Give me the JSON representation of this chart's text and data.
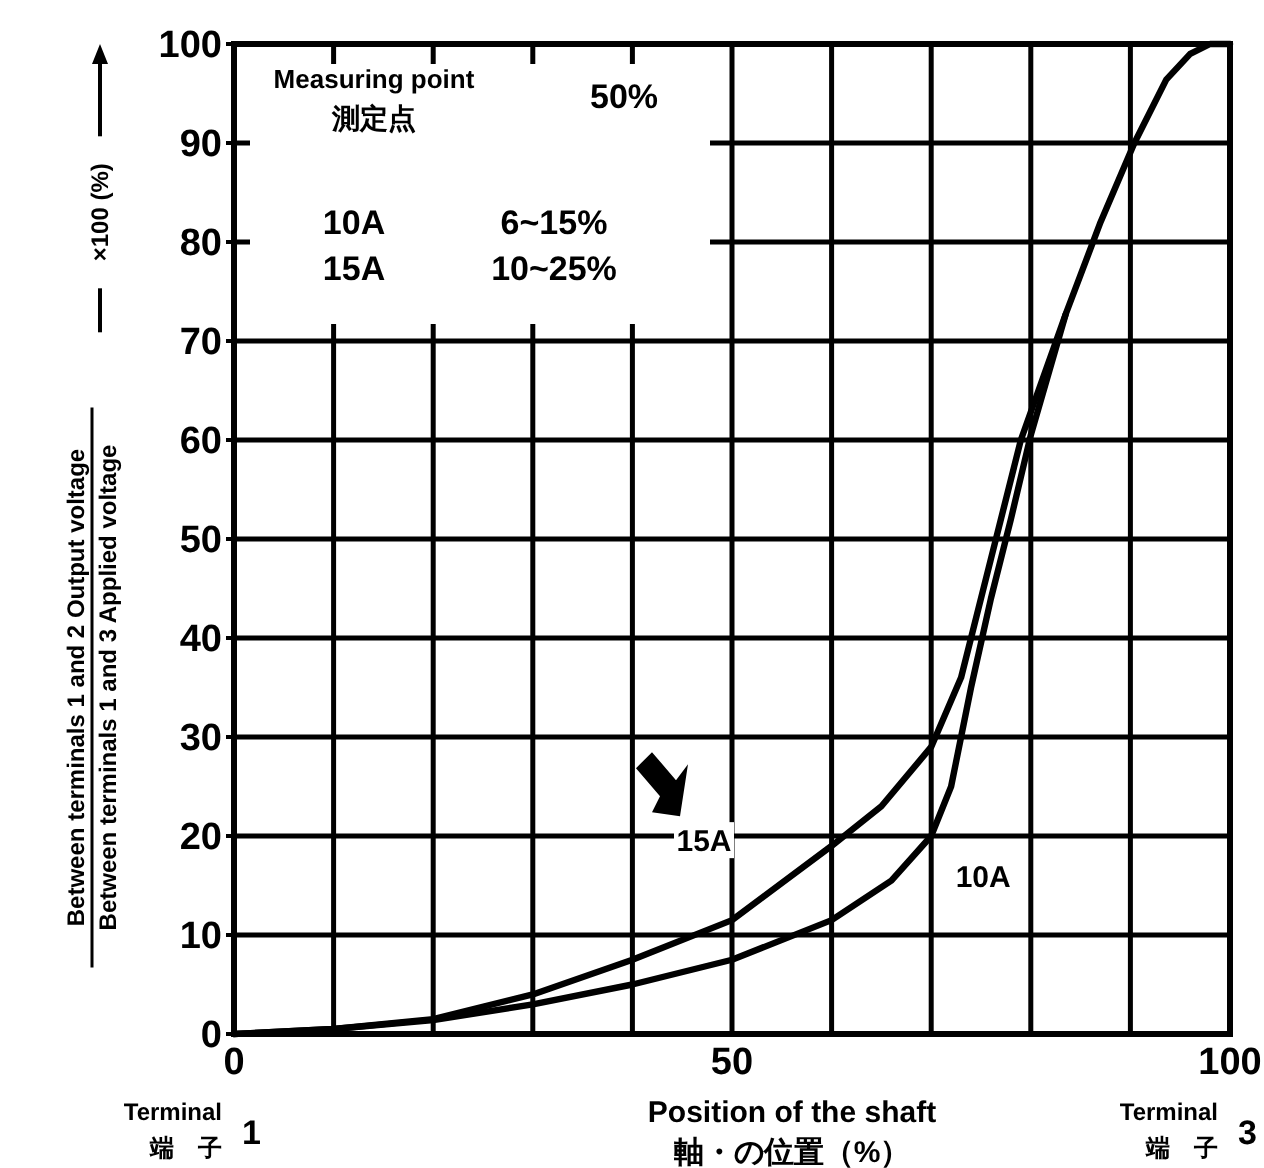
{
  "chart_data": {
    "type": "line",
    "xlabel": "Position of the shaft\n軸・の位置（%）",
    "ylabel": "Between terminals 1 and 2 Output voltage\nBetween terminals 1 and 3 Applied voltage\n×100 (%)",
    "xlim": [
      0,
      100
    ],
    "ylim": [
      0,
      100
    ],
    "xticks": [
      0,
      {
        "value": 10,
        "label": null
      },
      {
        "value": 20,
        "label": null
      },
      {
        "value": 30,
        "label": null
      },
      {
        "value": 40,
        "label": null
      },
      50,
      {
        "value": 60,
        "label": null
      },
      {
        "value": 70,
        "label": null
      },
      {
        "value": 80,
        "label": null
      },
      {
        "value": 90,
        "label": null
      },
      100
    ],
    "yticks": [
      0,
      10,
      20,
      30,
      40,
      50,
      60,
      70,
      80,
      90,
      100
    ],
    "grid": true,
    "series": [
      {
        "name": "15A",
        "color": "#000000",
        "x": [
          0,
          10,
          20,
          30,
          40,
          50,
          60,
          65,
          70,
          73,
          76,
          79,
          83.5,
          87,
          90.4,
          93.6,
          96,
          98,
          100
        ],
        "values": [
          0,
          0.5,
          1.5,
          4,
          7.5,
          11.5,
          19,
          23,
          29,
          36,
          48,
          60,
          72.7,
          82,
          90,
          96.4,
          99,
          100,
          100
        ]
      },
      {
        "name": "10A",
        "color": "#000000",
        "x": [
          0,
          10,
          20,
          30,
          40,
          50,
          60,
          66,
          70,
          72,
          74,
          76,
          78,
          80,
          83.5
        ],
        "values": [
          0,
          0.5,
          1.4,
          3,
          5,
          7.5,
          11.5,
          15.5,
          20,
          25,
          35,
          44,
          52,
          60.5,
          72.7
        ]
      }
    ],
    "annotations": [
      "Measuring point\n測定点",
      "50%",
      "10A",
      "6~15%",
      "15A",
      "10~25%",
      "Terminal\n端　子",
      "1",
      "Terminal\n端　子",
      "3"
    ]
  }
}
